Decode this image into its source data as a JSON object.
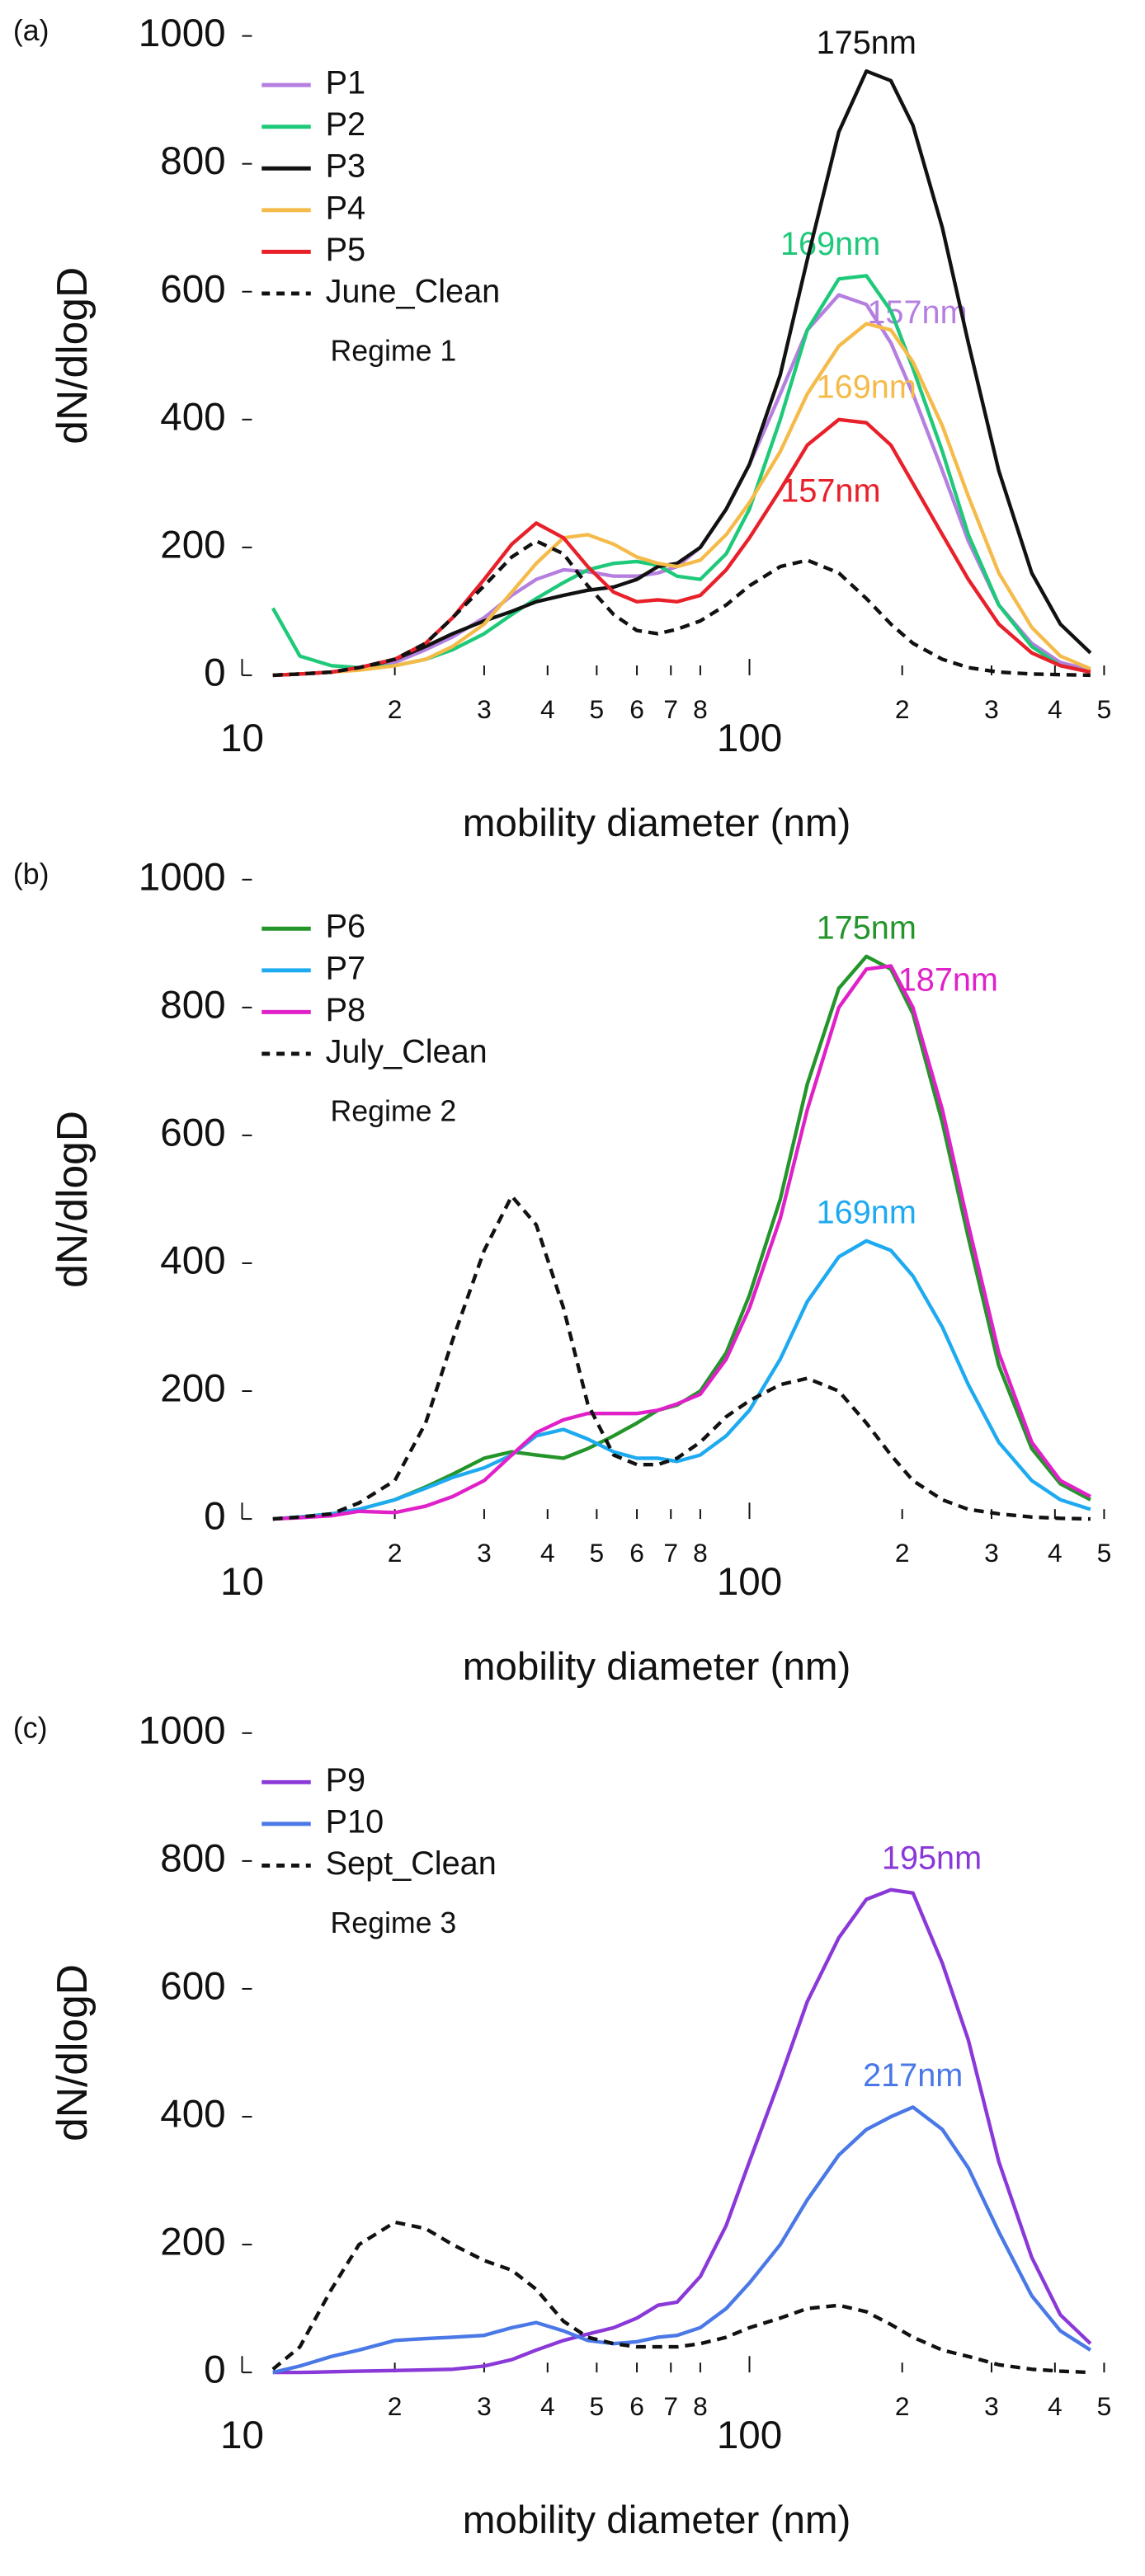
{
  "chart_data": [
    {
      "type": "line",
      "panel_label": "(a)",
      "regime": "Regime 1",
      "ylabel": "dN/dlogD",
      "xlabel": "mobility diameter (nm)",
      "log_x": true,
      "legend": "upper left",
      "xlim": [
        10,
        500
      ],
      "ylim": [
        0,
        1000
      ],
      "yticks": [
        0,
        200,
        400,
        600,
        800,
        1000
      ],
      "xticks": [
        10,
        {
          "value": 20,
          "label": "2"
        },
        {
          "value": 30,
          "label": "3"
        },
        {
          "value": 40,
          "label": "4"
        },
        {
          "value": 50,
          "label": "5"
        },
        {
          "value": 60,
          "label": "6"
        },
        {
          "value": 70,
          "label": "7"
        },
        {
          "value": 80,
          "label": "8"
        },
        100,
        {
          "value": 200,
          "label": "2"
        },
        {
          "value": 300,
          "label": "3"
        },
        {
          "value": 400,
          "label": "4"
        },
        {
          "value": 500,
          "label": "5"
        }
      ],
      "x": [
        11.5,
        13,
        15,
        17,
        20,
        23,
        26,
        30,
        34,
        38,
        43,
        48,
        54,
        60,
        66,
        72,
        80,
        90,
        100,
        115,
        130,
        150,
        170,
        190,
        210,
        240,
        270,
        310,
        360,
        410,
        470
      ],
      "series": [
        {
          "name": "P1",
          "color": "#b57fe0",
          "annotation": "157nm",
          "values": [
            0,
            2,
            5,
            10,
            20,
            40,
            60,
            90,
            125,
            150,
            165,
            162,
            155,
            155,
            160,
            170,
            200,
            260,
            330,
            440,
            540,
            595,
            580,
            520,
            440,
            320,
            210,
            110,
            50,
            20,
            8
          ]
        },
        {
          "name": "P2",
          "color": "#1ec97a",
          "annotation": "169nm",
          "values": [
            105,
            30,
            15,
            12,
            15,
            25,
            40,
            65,
            95,
            120,
            145,
            165,
            175,
            178,
            172,
            155,
            150,
            190,
            260,
            400,
            540,
            620,
            625,
            570,
            480,
            350,
            220,
            110,
            45,
            15,
            5
          ]
        },
        {
          "name": "P3",
          "color": "#111111",
          "annotation": "175nm",
          "values": [
            0,
            2,
            5,
            10,
            25,
            45,
            65,
            85,
            100,
            115,
            125,
            133,
            138,
            150,
            170,
            175,
            200,
            260,
            330,
            470,
            650,
            850,
            945,
            930,
            860,
            700,
            520,
            320,
            160,
            80,
            35
          ]
        },
        {
          "name": "P4",
          "color": "#f5bb4a",
          "annotation": "169nm",
          "values": [
            0,
            2,
            5,
            8,
            15,
            25,
            45,
            80,
            130,
            175,
            215,
            220,
            205,
            185,
            175,
            170,
            180,
            220,
            270,
            350,
            440,
            515,
            550,
            540,
            490,
            390,
            280,
            160,
            75,
            30,
            10
          ]
        },
        {
          "name": "P5",
          "color": "#e8202a",
          "annotation": "157nm",
          "values": [
            0,
            2,
            5,
            12,
            25,
            50,
            90,
            150,
            205,
            238,
            215,
            170,
            130,
            115,
            118,
            115,
            125,
            165,
            215,
            290,
            360,
            400,
            395,
            360,
            300,
            220,
            150,
            80,
            35,
            15,
            5
          ]
        },
        {
          "name": "June_Clean",
          "color": "#111111",
          "dash": true,
          "values": [
            0,
            2,
            5,
            12,
            25,
            50,
            90,
            140,
            185,
            210,
            190,
            140,
            95,
            70,
            65,
            72,
            85,
            110,
            140,
            170,
            180,
            160,
            120,
            80,
            50,
            25,
            12,
            5,
            2,
            1,
            0
          ]
        }
      ]
    },
    {
      "type": "line",
      "panel_label": "(b)",
      "regime": "Regime 2",
      "ylabel": "dN/dlogD",
      "xlabel": "mobility diameter (nm)",
      "log_x": true,
      "legend": "upper left",
      "xlim": [
        10,
        500
      ],
      "ylim": [
        0,
        1000
      ],
      "yticks": [
        0,
        200,
        400,
        600,
        800,
        1000
      ],
      "xticks": [
        10,
        {
          "value": 20,
          "label": "2"
        },
        {
          "value": 30,
          "label": "3"
        },
        {
          "value": 40,
          "label": "4"
        },
        {
          "value": 50,
          "label": "5"
        },
        {
          "value": 60,
          "label": "6"
        },
        {
          "value": 70,
          "label": "7"
        },
        {
          "value": 80,
          "label": "8"
        },
        100,
        {
          "value": 200,
          "label": "2"
        },
        {
          "value": 300,
          "label": "3"
        },
        {
          "value": 400,
          "label": "4"
        },
        {
          "value": 500,
          "label": "5"
        }
      ],
      "x": [
        11.5,
        13,
        15,
        17,
        20,
        23,
        26,
        30,
        34,
        38,
        43,
        48,
        54,
        60,
        66,
        72,
        80,
        90,
        100,
        115,
        130,
        150,
        170,
        190,
        210,
        240,
        270,
        310,
        360,
        410,
        470
      ],
      "series": [
        {
          "name": "P6",
          "color": "#23952a",
          "annotation": "175nm",
          "values": [
            0,
            3,
            8,
            15,
            30,
            50,
            70,
            95,
            105,
            100,
            95,
            110,
            130,
            150,
            170,
            178,
            200,
            260,
            350,
            500,
            680,
            830,
            880,
            860,
            790,
            620,
            440,
            240,
            110,
            55,
            30
          ]
        },
        {
          "name": "P7",
          "color": "#1eaaf0",
          "annotation": "169nm",
          "values": [
            0,
            3,
            8,
            15,
            30,
            48,
            65,
            80,
            100,
            130,
            140,
            125,
            105,
            95,
            95,
            90,
            100,
            130,
            170,
            250,
            340,
            410,
            435,
            420,
            380,
            300,
            210,
            120,
            60,
            30,
            15
          ]
        },
        {
          "name": "P8",
          "color": "#e020c8",
          "annotation": "187nm",
          "values": [
            0,
            2,
            5,
            12,
            10,
            20,
            35,
            60,
            100,
            135,
            155,
            165,
            165,
            165,
            170,
            180,
            195,
            250,
            330,
            470,
            640,
            800,
            860,
            865,
            800,
            640,
            460,
            260,
            120,
            60,
            35
          ]
        },
        {
          "name": "July_Clean",
          "color": "#111111",
          "dash": true,
          "values": [
            0,
            3,
            8,
            25,
            60,
            150,
            280,
            420,
            505,
            460,
            330,
            180,
            100,
            85,
            85,
            95,
            120,
            160,
            185,
            210,
            220,
            200,
            150,
            100,
            60,
            30,
            15,
            8,
            3,
            1,
            0
          ]
        }
      ]
    },
    {
      "type": "line",
      "panel_label": "(c)",
      "regime": "Regime 3",
      "ylabel": "dN/dlogD",
      "xlabel": "mobility diameter (nm)",
      "log_x": true,
      "legend": "upper left",
      "xlim": [
        10,
        500
      ],
      "ylim": [
        0,
        1000
      ],
      "yticks": [
        0,
        200,
        400,
        600,
        800,
        1000
      ],
      "xticks": [
        10,
        {
          "value": 20,
          "label": "2"
        },
        {
          "value": 30,
          "label": "3"
        },
        {
          "value": 40,
          "label": "4"
        },
        {
          "value": 50,
          "label": "5"
        },
        {
          "value": 60,
          "label": "6"
        },
        {
          "value": 70,
          "label": "7"
        },
        {
          "value": 80,
          "label": "8"
        },
        100,
        {
          "value": 200,
          "label": "2"
        },
        {
          "value": 300,
          "label": "3"
        },
        {
          "value": 400,
          "label": "4"
        },
        {
          "value": 500,
          "label": "5"
        }
      ],
      "x": [
        11.5,
        13,
        15,
        17,
        20,
        23,
        26,
        30,
        34,
        38,
        43,
        48,
        54,
        60,
        66,
        72,
        80,
        90,
        100,
        115,
        130,
        150,
        170,
        190,
        210,
        240,
        270,
        310,
        360,
        410,
        470
      ],
      "series": [
        {
          "name": "P9",
          "color": "#8a38d8",
          "annotation": "195nm",
          "values": [
            0,
            0,
            1,
            2,
            3,
            4,
            5,
            10,
            20,
            35,
            50,
            60,
            70,
            85,
            105,
            110,
            150,
            230,
            330,
            460,
            580,
            680,
            740,
            755,
            750,
            640,
            520,
            330,
            180,
            90,
            45
          ]
        },
        {
          "name": "P10",
          "color": "#4a78e6",
          "annotation": "217nm",
          "values": [
            0,
            10,
            25,
            35,
            50,
            53,
            55,
            58,
            70,
            78,
            65,
            50,
            45,
            48,
            55,
            58,
            70,
            100,
            140,
            200,
            270,
            340,
            380,
            400,
            415,
            380,
            320,
            220,
            120,
            65,
            35
          ]
        },
        {
          "name": "Sept_Clean",
          "color": "#111111",
          "dash": true,
          "values": [
            5,
            40,
            130,
            200,
            235,
            225,
            200,
            175,
            160,
            130,
            80,
            55,
            45,
            40,
            40,
            40,
            45,
            55,
            70,
            85,
            100,
            105,
            95,
            75,
            55,
            35,
            25,
            12,
            5,
            2,
            0
          ]
        }
      ]
    }
  ]
}
